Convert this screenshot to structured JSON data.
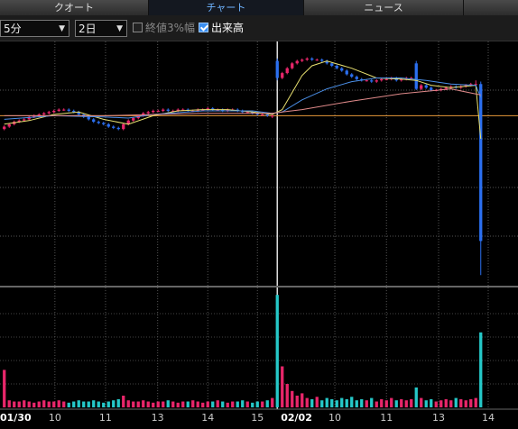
{
  "tabs": [
    "クオート",
    "チャート",
    "ニュース"
  ],
  "active_tab": 1,
  "toolbar": {
    "interval": "5分",
    "period": "2日",
    "options": [
      {
        "label": "終値3%幅",
        "checked": false
      },
      {
        "label": "出来高",
        "checked": true
      }
    ]
  },
  "chart_data": {
    "type": "candlestick",
    "xlim": [
      -0.86,
      103.5
    ],
    "xticks": [
      {
        "value": 0,
        "label": "01/30"
      },
      {
        "value": 10.2,
        "label": "10"
      },
      {
        "value": 20.4,
        "label": "11"
      },
      {
        "value": 30.9,
        "label": "13"
      },
      {
        "value": 41,
        "label": "14"
      },
      {
        "value": 51,
        "label": "15"
      },
      {
        "value": 55,
        "label": "02/02"
      },
      {
        "value": 66.6,
        "label": "10"
      },
      {
        "value": 77,
        "label": "11"
      },
      {
        "value": 87.5,
        "label": "13"
      },
      {
        "value": 97.5,
        "label": "14"
      }
    ],
    "ylim": [
      0,
      100
    ],
    "yticks": [
      20,
      40,
      60,
      80
    ],
    "grid": true,
    "up_color": "#e8266a",
    "down_color": "#2b6ff0",
    "candles": [
      [
        64,
        65.5,
        63.5,
        65
      ],
      [
        65,
        66.5,
        64.5,
        66
      ],
      [
        66,
        67.5,
        65.5,
        67
      ],
      [
        67,
        68,
        66.5,
        67.5
      ],
      [
        67.5,
        68.5,
        67,
        68
      ],
      [
        68,
        69.5,
        67.5,
        69
      ],
      [
        69,
        70,
        68.5,
        69.5
      ],
      [
        69.5,
        70.5,
        69,
        70
      ],
      [
        70,
        71,
        69.5,
        70.5
      ],
      [
        70.5,
        71.5,
        70,
        71
      ],
      [
        71,
        72,
        70.5,
        71.5
      ],
      [
        71.5,
        72.5,
        71,
        72
      ],
      [
        72,
        72.5,
        71.5,
        72
      ],
      [
        72,
        72.5,
        71,
        71.5
      ],
      [
        71.5,
        72,
        70.5,
        71
      ],
      [
        71,
        71.5,
        69.5,
        70
      ],
      [
        70,
        70.5,
        68.5,
        69
      ],
      [
        69,
        69.5,
        67.5,
        68
      ],
      [
        68,
        68.5,
        66.5,
        67
      ],
      [
        67,
        67.5,
        66,
        66.5
      ],
      [
        66.5,
        67,
        65.5,
        66
      ],
      [
        66,
        66.5,
        64.5,
        65
      ],
      [
        65,
        65.5,
        64,
        64.5
      ],
      [
        64.5,
        65,
        63.5,
        64
      ],
      [
        64,
        66.5,
        63.5,
        66
      ],
      [
        66,
        68,
        65.5,
        67.5
      ],
      [
        67.5,
        69,
        67,
        68.5
      ],
      [
        68.5,
        70,
        68,
        69.5
      ],
      [
        69.5,
        71,
        69,
        70.5
      ],
      [
        70.5,
        71.5,
        70,
        71
      ],
      [
        71,
        72,
        70.5,
        71.5
      ],
      [
        71.5,
        72,
        71,
        71.5
      ],
      [
        71.5,
        72.5,
        71,
        72
      ],
      [
        72,
        72.5,
        71,
        71.5
      ],
      [
        71.5,
        72,
        71,
        71.5
      ],
      [
        71.5,
        72.5,
        71,
        72
      ],
      [
        72,
        72.5,
        71.5,
        72
      ],
      [
        72,
        72.5,
        71,
        71.5
      ],
      [
        71.5,
        72,
        71,
        71.5
      ],
      [
        71.5,
        72.5,
        71,
        72
      ],
      [
        72,
        72.5,
        71.5,
        72
      ],
      [
        72,
        73,
        71.5,
        72.5
      ],
      [
        72.5,
        73,
        71.5,
        72
      ],
      [
        72,
        72.5,
        71.5,
        72
      ],
      [
        72,
        72.5,
        71,
        71.5
      ],
      [
        71.5,
        72.5,
        71,
        72
      ],
      [
        72,
        72.5,
        71.5,
        72
      ],
      [
        72,
        72.5,
        71,
        71.5
      ],
      [
        71.5,
        72,
        70.5,
        71
      ],
      [
        71,
        71.5,
        70.5,
        71
      ],
      [
        71,
        71.5,
        70,
        70.5
      ],
      [
        70.5,
        71,
        69.5,
        70
      ],
      [
        70,
        70.5,
        69.5,
        70
      ],
      [
        70,
        70.5,
        69,
        69.5
      ],
      [
        69.5,
        70,
        68.5,
        69.5
      ],
      [
        92,
        93,
        84,
        85
      ],
      [
        85,
        87.5,
        84.5,
        87
      ],
      [
        87,
        89.5,
        86.5,
        89
      ],
      [
        89,
        91.5,
        88.5,
        91
      ],
      [
        91,
        92.5,
        90.5,
        92
      ],
      [
        92,
        93,
        91.5,
        92.5
      ],
      [
        92.5,
        93.5,
        92,
        93
      ],
      [
        93,
        93.5,
        92,
        92.5
      ],
      [
        92.5,
        93,
        92,
        92.5
      ],
      [
        92.5,
        93,
        91.5,
        92
      ],
      [
        92,
        92.5,
        90.5,
        91
      ],
      [
        91,
        91.5,
        89.5,
        90
      ],
      [
        90,
        90.5,
        88.5,
        89
      ],
      [
        89,
        89.5,
        87.5,
        88
      ],
      [
        88,
        88.5,
        86,
        86.5
      ],
      [
        86.5,
        87,
        85,
        85.5
      ],
      [
        85.5,
        86,
        84,
        84.5
      ],
      [
        84.5,
        85,
        83.5,
        84
      ],
      [
        84,
        84.5,
        83.5,
        84
      ],
      [
        84,
        84.5,
        83,
        83.5
      ],
      [
        83.5,
        84.5,
        83,
        84
      ],
      [
        84,
        85,
        83.5,
        84.5
      ],
      [
        84.5,
        85,
        84,
        84.5
      ],
      [
        84.5,
        85.5,
        84,
        85
      ],
      [
        85,
        85.5,
        83.5,
        84
      ],
      [
        84,
        85,
        83.5,
        84.5
      ],
      [
        84.5,
        85.5,
        84,
        85
      ],
      [
        85,
        85.5,
        84.5,
        85
      ],
      [
        91,
        92,
        80,
        80.5
      ],
      [
        80.5,
        82.5,
        80,
        82
      ],
      [
        82,
        82.5,
        80.5,
        81
      ],
      [
        81,
        81.5,
        79.5,
        80
      ],
      [
        80,
        80.5,
        79.5,
        80
      ],
      [
        80,
        81,
        79.5,
        80.5
      ],
      [
        80.5,
        81.5,
        80,
        81
      ],
      [
        81,
        82,
        80.5,
        81.5
      ],
      [
        81.5,
        82,
        80.5,
        81
      ],
      [
        81,
        82,
        80.5,
        81.5
      ],
      [
        81.5,
        82.5,
        81,
        82
      ],
      [
        82,
        83,
        81.5,
        82.5
      ],
      [
        82.5,
        84,
        82,
        82.5
      ],
      [
        82.5,
        83.5,
        4,
        18
      ]
    ],
    "reference_line": {
      "value": 69.5,
      "color": "#e89a3a"
    },
    "moving_averages": [
      {
        "color": "#e8e070",
        "x": [
          0,
          5,
          10,
          15,
          20,
          25,
          30,
          35,
          40,
          45,
          50,
          54,
          56,
          58,
          60,
          62,
          65,
          70,
          75,
          80,
          83,
          86,
          90,
          95,
          96
        ],
        "values": [
          66,
          67.5,
          70,
          71,
          68,
          66,
          69.5,
          71.5,
          72,
          72,
          71,
          70,
          72,
          79,
          86,
          90,
          92,
          89,
          85,
          84.5,
          84,
          82,
          81,
          82,
          60
        ]
      },
      {
        "color": "#4a8ee6",
        "x": [
          0,
          10,
          20,
          25,
          30,
          40,
          50,
          54,
          56,
          60,
          65,
          70,
          75,
          80,
          85,
          90,
          95,
          96
        ],
        "values": [
          68,
          69.5,
          69,
          68.5,
          70,
          71.5,
          71.5,
          70.5,
          71,
          76,
          80.5,
          83.5,
          85,
          85,
          84,
          82.5,
          82,
          77
        ]
      },
      {
        "color": "#e08a8a",
        "x": [
          0,
          20,
          40,
          54,
          56,
          60,
          70,
          80,
          90,
          96
        ],
        "values": [
          69.5,
          69.5,
          70.5,
          70.5,
          71,
          72,
          75.5,
          78.5,
          80.5,
          78
        ]
      }
    ],
    "volume": {
      "ylim": [
        0,
        100
      ],
      "yticks": [
        20,
        40,
        60,
        80
      ],
      "up_color": "#e8266a",
      "down_color": "#25c8c8",
      "values": [
        32,
        6,
        5,
        5,
        6,
        5,
        4,
        5,
        6,
        5,
        5,
        6,
        5,
        4,
        5,
        6,
        5,
        5,
        6,
        5,
        4,
        5,
        6,
        7,
        10,
        6,
        5,
        5,
        6,
        5,
        4,
        5,
        5,
        6,
        5,
        4,
        5,
        5,
        6,
        5,
        4,
        5,
        5,
        6,
        5,
        4,
        5,
        5,
        6,
        5,
        4,
        5,
        5,
        6,
        8,
        96,
        35,
        20,
        14,
        10,
        12,
        8,
        7,
        9,
        6,
        8,
        7,
        6,
        8,
        7,
        9,
        6,
        7,
        6,
        8,
        5,
        7,
        6,
        8,
        6,
        7,
        6,
        7,
        17,
        8,
        6,
        7,
        5,
        6,
        7,
        6,
        8,
        7,
        6,
        7,
        8,
        64
      ]
    }
  }
}
